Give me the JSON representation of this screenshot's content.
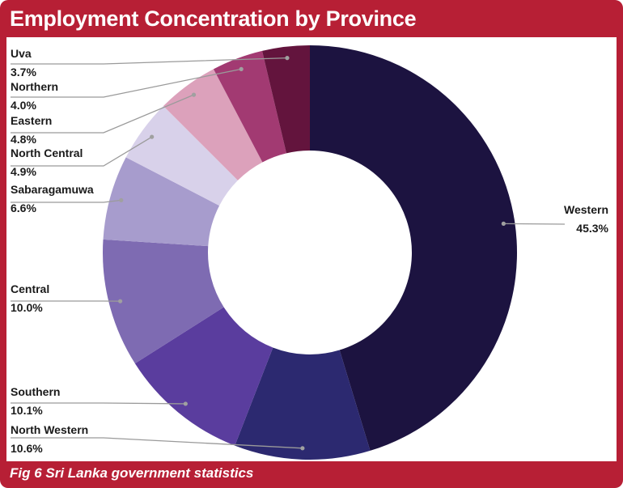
{
  "title": "Employment Concentration by Province",
  "footer": "Fig 6 Sri Lanka government statistics",
  "chart_data": {
    "type": "pie",
    "variant": "donut",
    "title": "Employment Concentration by Province",
    "start": "top, clockwise",
    "slices": [
      {
        "label": "Western",
        "display": "45.3%",
        "value": 45.3,
        "color": "#1c1340"
      },
      {
        "label": "North Western",
        "display": "10.6%",
        "value": 10.6,
        "color": "#2c2970"
      },
      {
        "label": "Southern",
        "display": "10.1%",
        "value": 10.1,
        "color": "#5a3d9e"
      },
      {
        "label": "Central",
        "display": "10.0%",
        "value": 10.0,
        "color": "#7e6bb2"
      },
      {
        "label": "Sabaragamuwa",
        "display": "6.6%",
        "value": 6.6,
        "color": "#a79ccd"
      },
      {
        "label": "North Central",
        "display": "4.9%",
        "value": 4.9,
        "color": "#d8d1ea"
      },
      {
        "label": "Eastern",
        "display": "4.8%",
        "value": 4.8,
        "color": "#dca1bb"
      },
      {
        "label": "Northern",
        "display": "4.0%",
        "value": 4.0,
        "color": "#a23a72"
      },
      {
        "label": "Uva",
        "display": "3.7%",
        "value": 3.7,
        "color": "#63143d"
      }
    ]
  }
}
